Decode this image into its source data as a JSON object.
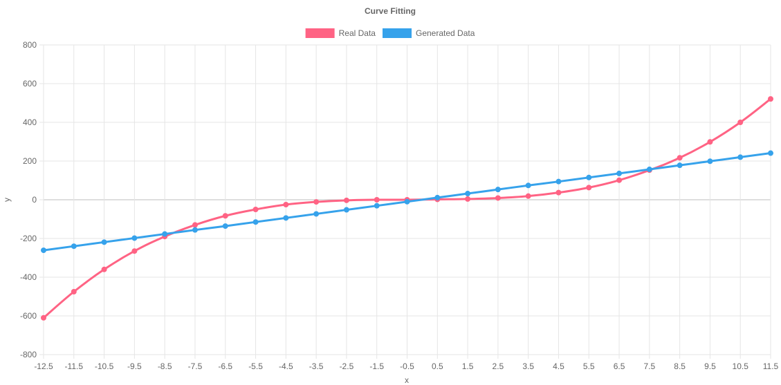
{
  "chart_data": {
    "type": "line",
    "title": "Curve Fitting",
    "xlabel": "x",
    "ylabel": "y",
    "x": [
      -12.5,
      -11.5,
      -10.5,
      -9.5,
      -8.5,
      -7.5,
      -6.5,
      -5.5,
      -4.5,
      -3.5,
      -2.5,
      -1.5,
      -0.5,
      0.5,
      1.5,
      2.5,
      3.5,
      4.5,
      5.5,
      6.5,
      7.5,
      8.5,
      9.5,
      10.5,
      11.5
    ],
    "x_tick_labels": [
      "-12.5",
      "-11.5",
      "-10.5",
      "-9.5",
      "-8.5",
      "-7.5",
      "-6.5",
      "-5.5",
      "-4.5",
      "-3.5",
      "-2.5",
      "-1.5",
      "-0.5",
      "0.5",
      "1.5",
      "2.5",
      "3.5",
      "4.5",
      "5.5",
      "6.5",
      "7.5",
      "8.5",
      "9.5",
      "10.5",
      "11.5"
    ],
    "ylim": [
      -800,
      800
    ],
    "y_ticks": [
      800,
      600,
      400,
      200,
      0,
      -200,
      -400,
      -600,
      -800
    ],
    "grid": true,
    "legend_position": "top",
    "series": [
      {
        "name": "Real Data",
        "color": "#ff6384",
        "values": [
          -610,
          -475,
          -360,
          -265,
          -190,
          -130,
          -83,
          -50,
          -25,
          -11,
          -3,
          0,
          0,
          2,
          4,
          9,
          19,
          37,
          63,
          101,
          153,
          217,
          299,
          400,
          521
        ]
      },
      {
        "name": "Generated Data",
        "color": "#36a2eb",
        "values": [
          -261,
          -240,
          -219,
          -198,
          -177,
          -156,
          -136,
          -115,
          -94,
          -73,
          -52,
          -31,
          -10,
          11,
          32,
          53,
          74,
          94,
          115,
          136,
          157,
          178,
          199,
          220,
          241
        ]
      }
    ]
  }
}
